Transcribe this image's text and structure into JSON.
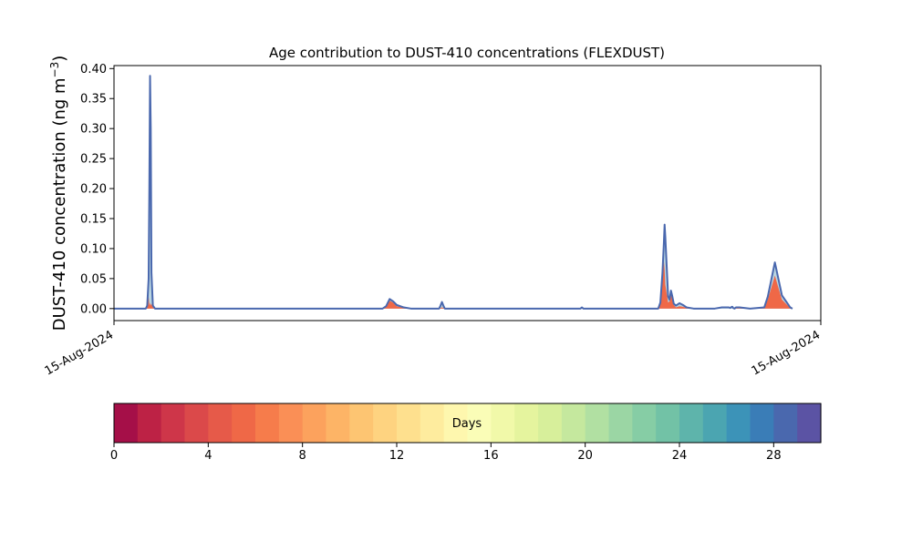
{
  "chart_data": {
    "type": "area",
    "title": "Age contribution to DUST-410 concentrations (FLEXDUST)",
    "xlabel": "",
    "ylabel": "DUST-410 concentration (ng m$^{-3}$)",
    "x_axis": {
      "scale": "time",
      "tick_labels": [
        "15-Aug-2024",
        "15-Aug-2024"
      ],
      "range_fraction": [
        0,
        1
      ]
    },
    "y_axis": {
      "ylim": [
        -0.02,
        0.405
      ],
      "ticks": [
        0.0,
        0.05,
        0.1,
        0.15,
        0.2,
        0.25,
        0.3,
        0.35,
        0.4
      ],
      "tick_labels": [
        "0.00",
        "0.05",
        "0.10",
        "0.15",
        "0.20",
        "0.25",
        "0.30",
        "0.35",
        "0.40"
      ]
    },
    "grid": false,
    "series_description": "stacked areas by particle age; dark blue outline = total",
    "x": [
      0.0,
      0.045,
      0.047,
      0.049,
      0.05,
      0.051,
      0.052,
      0.053,
      0.055,
      0.058,
      0.38,
      0.385,
      0.39,
      0.395,
      0.4,
      0.41,
      0.42,
      0.44,
      0.46,
      0.462,
      0.464,
      0.466,
      0.468,
      0.66,
      0.662,
      0.664,
      0.77,
      0.773,
      0.776,
      0.778,
      0.779,
      0.78,
      0.782,
      0.784,
      0.786,
      0.788,
      0.79,
      0.792,
      0.795,
      0.8,
      0.805,
      0.81,
      0.82,
      0.83,
      0.85,
      0.86,
      0.865,
      0.87,
      0.872,
      0.874,
      0.875,
      0.876,
      0.878,
      0.88,
      0.885,
      0.9,
      0.92,
      0.925,
      0.935,
      0.945,
      0.955,
      0.956,
      0.958,
      0.96
    ],
    "total": [
      0,
      0,
      0.005,
      0.05,
      0.2,
      0.388,
      0.3,
      0.06,
      0.005,
      0,
      0,
      0.004,
      0.016,
      0.012,
      0.006,
      0.002,
      0,
      0,
      0,
      0.005,
      0.011,
      0.005,
      0,
      0,
      0.002,
      0,
      0,
      0.01,
      0.06,
      0.11,
      0.14,
      0.12,
      0.07,
      0.02,
      0.015,
      0.03,
      0.02,
      0.008,
      0.005,
      0.009,
      0.006,
      0.002,
      0,
      0,
      0,
      0.002,
      0.002,
      0.002,
      0.001,
      0.003,
      0.003,
      0.001,
      0,
      0.002,
      0.002,
      0,
      0.002,
      0.02,
      0.077,
      0.022,
      0.005,
      0.003,
      0.001,
      0
    ],
    "age_0_4_days": [
      0,
      0,
      0.004,
      0.02,
      0.005,
      0.01,
      0.005,
      0.008,
      0.002,
      0,
      0,
      0.003,
      0.013,
      0.01,
      0.004,
      0.001,
      0,
      0,
      0,
      0.001,
      0.002,
      0.001,
      0,
      0,
      0,
      0,
      0,
      0.008,
      0.05,
      0.08,
      0.065,
      0.04,
      0.025,
      0.01,
      0.012,
      0.025,
      0.015,
      0.006,
      0.002,
      0.004,
      0.003,
      0.001,
      0,
      0,
      0,
      0,
      0,
      0,
      0,
      0,
      0,
      0,
      0,
      0.002,
      0.002,
      0,
      0.001,
      0.015,
      0.055,
      0.015,
      0.003,
      0.002,
      0.001,
      0
    ],
    "colorbar": {
      "label": "Days",
      "min": 0,
      "max": 30,
      "ticks": [
        0,
        4,
        8,
        12,
        16,
        20,
        24,
        28
      ],
      "tick_labels": [
        "0",
        "4",
        "8",
        "12",
        "16",
        "20",
        "24",
        "28"
      ],
      "colors": [
        "#a50f48",
        "#bd2245",
        "#ce3649",
        "#db494a",
        "#e65a49",
        "#ef6847",
        "#f67c4b",
        "#fa8f56",
        "#fca25d",
        "#fdb466",
        "#fdc572",
        "#fed380",
        "#fee08e",
        "#feec9e",
        "#fef7ae",
        "#fafdb7",
        "#f1f9a9",
        "#e5f49e",
        "#d7ef9b",
        "#c5e89e",
        "#b1e0a2",
        "#9bd6a4",
        "#86cda5",
        "#72c2a6",
        "#5eb4ab",
        "#4ba5b1",
        "#3c93b8",
        "#3a7db7",
        "#4a68ae",
        "#5b53a4"
      ]
    }
  }
}
